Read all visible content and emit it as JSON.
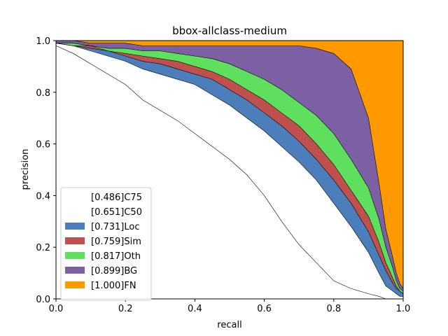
{
  "chart_data": {
    "type": "area",
    "title": "bbox-allclass-medium",
    "xlabel": "recall",
    "ylabel": "precision",
    "xlim": [
      0,
      1
    ],
    "ylim": [
      0,
      1
    ],
    "xticks": [
      "0.0",
      "0.2",
      "0.4",
      "0.6",
      "0.8",
      "1.0"
    ],
    "yticks": [
      "0.0",
      "0.2",
      "0.4",
      "0.6",
      "0.8",
      "1.0"
    ],
    "grid": false,
    "legend_position": "lower-left",
    "x": [
      0.0,
      0.05,
      0.1,
      0.15,
      0.2,
      0.25,
      0.3,
      0.35,
      0.4,
      0.45,
      0.5,
      0.55,
      0.6,
      0.65,
      0.7,
      0.75,
      0.8,
      0.85,
      0.9,
      0.93,
      0.95,
      0.97,
      0.98,
      0.99,
      1.0
    ],
    "series": [
      {
        "name": "[0.486]C75",
        "color": "#ffffff",
        "values": [
          0.98,
          0.95,
          0.91,
          0.87,
          0.83,
          0.77,
          0.73,
          0.69,
          0.64,
          0.59,
          0.54,
          0.48,
          0.4,
          0.3,
          0.21,
          0.14,
          0.07,
          0.04,
          0.02,
          0.01,
          0.0,
          0.0,
          0.0,
          0.0,
          0.0
        ]
      },
      {
        "name": "[0.651]C50",
        "color": "#ffffff",
        "values": [
          0.99,
          0.98,
          0.96,
          0.94,
          0.92,
          0.89,
          0.87,
          0.85,
          0.83,
          0.79,
          0.75,
          0.7,
          0.65,
          0.59,
          0.53,
          0.46,
          0.37,
          0.28,
          0.18,
          0.1,
          0.05,
          0.03,
          0.02,
          0.01,
          0.01
        ]
      },
      {
        "name": "[0.731]Loc",
        "color": "#4c7ebb",
        "values": [
          0.99,
          0.98,
          0.97,
          0.96,
          0.94,
          0.92,
          0.91,
          0.89,
          0.87,
          0.85,
          0.81,
          0.77,
          0.72,
          0.67,
          0.61,
          0.54,
          0.46,
          0.37,
          0.26,
          0.17,
          0.11,
          0.06,
          0.04,
          0.03,
          0.02
        ]
      },
      {
        "name": "[0.759]Sim",
        "color": "#c0504d",
        "values": [
          0.99,
          0.98,
          0.98,
          0.96,
          0.95,
          0.94,
          0.93,
          0.92,
          0.9,
          0.88,
          0.85,
          0.81,
          0.77,
          0.72,
          0.67,
          0.6,
          0.52,
          0.42,
          0.32,
          0.22,
          0.14,
          0.08,
          0.05,
          0.03,
          0.02
        ]
      },
      {
        "name": "[0.817]Oth",
        "color": "#5ee05e",
        "values": [
          0.99,
          0.99,
          0.98,
          0.97,
          0.97,
          0.96,
          0.96,
          0.95,
          0.94,
          0.93,
          0.91,
          0.88,
          0.85,
          0.81,
          0.76,
          0.71,
          0.64,
          0.54,
          0.43,
          0.31,
          0.2,
          0.12,
          0.07,
          0.04,
          0.03
        ]
      },
      {
        "name": "[0.899]BG",
        "color": "#7d60a4",
        "values": [
          1.0,
          1.0,
          0.99,
          0.99,
          0.99,
          0.98,
          0.98,
          0.98,
          0.98,
          0.98,
          0.98,
          0.98,
          0.98,
          0.98,
          0.98,
          0.97,
          0.95,
          0.89,
          0.7,
          0.45,
          0.27,
          0.16,
          0.1,
          0.06,
          0.04
        ]
      },
      {
        "name": "[1.000]FN",
        "color": "#ff9900",
        "values": [
          1.0,
          1.0,
          1.0,
          1.0,
          1.0,
          1.0,
          1.0,
          1.0,
          1.0,
          1.0,
          1.0,
          1.0,
          1.0,
          1.0,
          1.0,
          1.0,
          1.0,
          1.0,
          1.0,
          1.0,
          1.0,
          1.0,
          1.0,
          1.0,
          1.0
        ]
      }
    ]
  }
}
